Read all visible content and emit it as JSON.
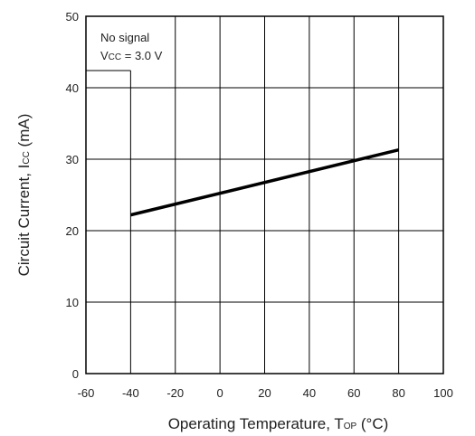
{
  "chart_data": {
    "type": "line",
    "xlabel_main": "Operating Temperature, T",
    "xlabel_sub": "OP",
    "xlabel_tail": " (°C)",
    "ylabel_main": "Circuit Current, I",
    "ylabel_sub": "CC",
    "ylabel_tail": " (mA)",
    "xlim": [
      -60,
      100
    ],
    "ylim": [
      0,
      50
    ],
    "x_ticks": [
      "-60",
      "-40",
      "-20",
      "0",
      "20",
      "40",
      "60",
      "80",
      "100"
    ],
    "y_ticks": [
      "0",
      "10",
      "20",
      "30",
      "40",
      "50"
    ],
    "grid": true,
    "annotation": {
      "line1": "No signal",
      "line2_main": "V",
      "line2_sub": "CC",
      "line2_tail": " = 3.0 V"
    },
    "series": [
      {
        "x": [
          -40,
          80
        ],
        "y": [
          22.2,
          31.3
        ]
      }
    ],
    "line_color": "#000000"
  }
}
